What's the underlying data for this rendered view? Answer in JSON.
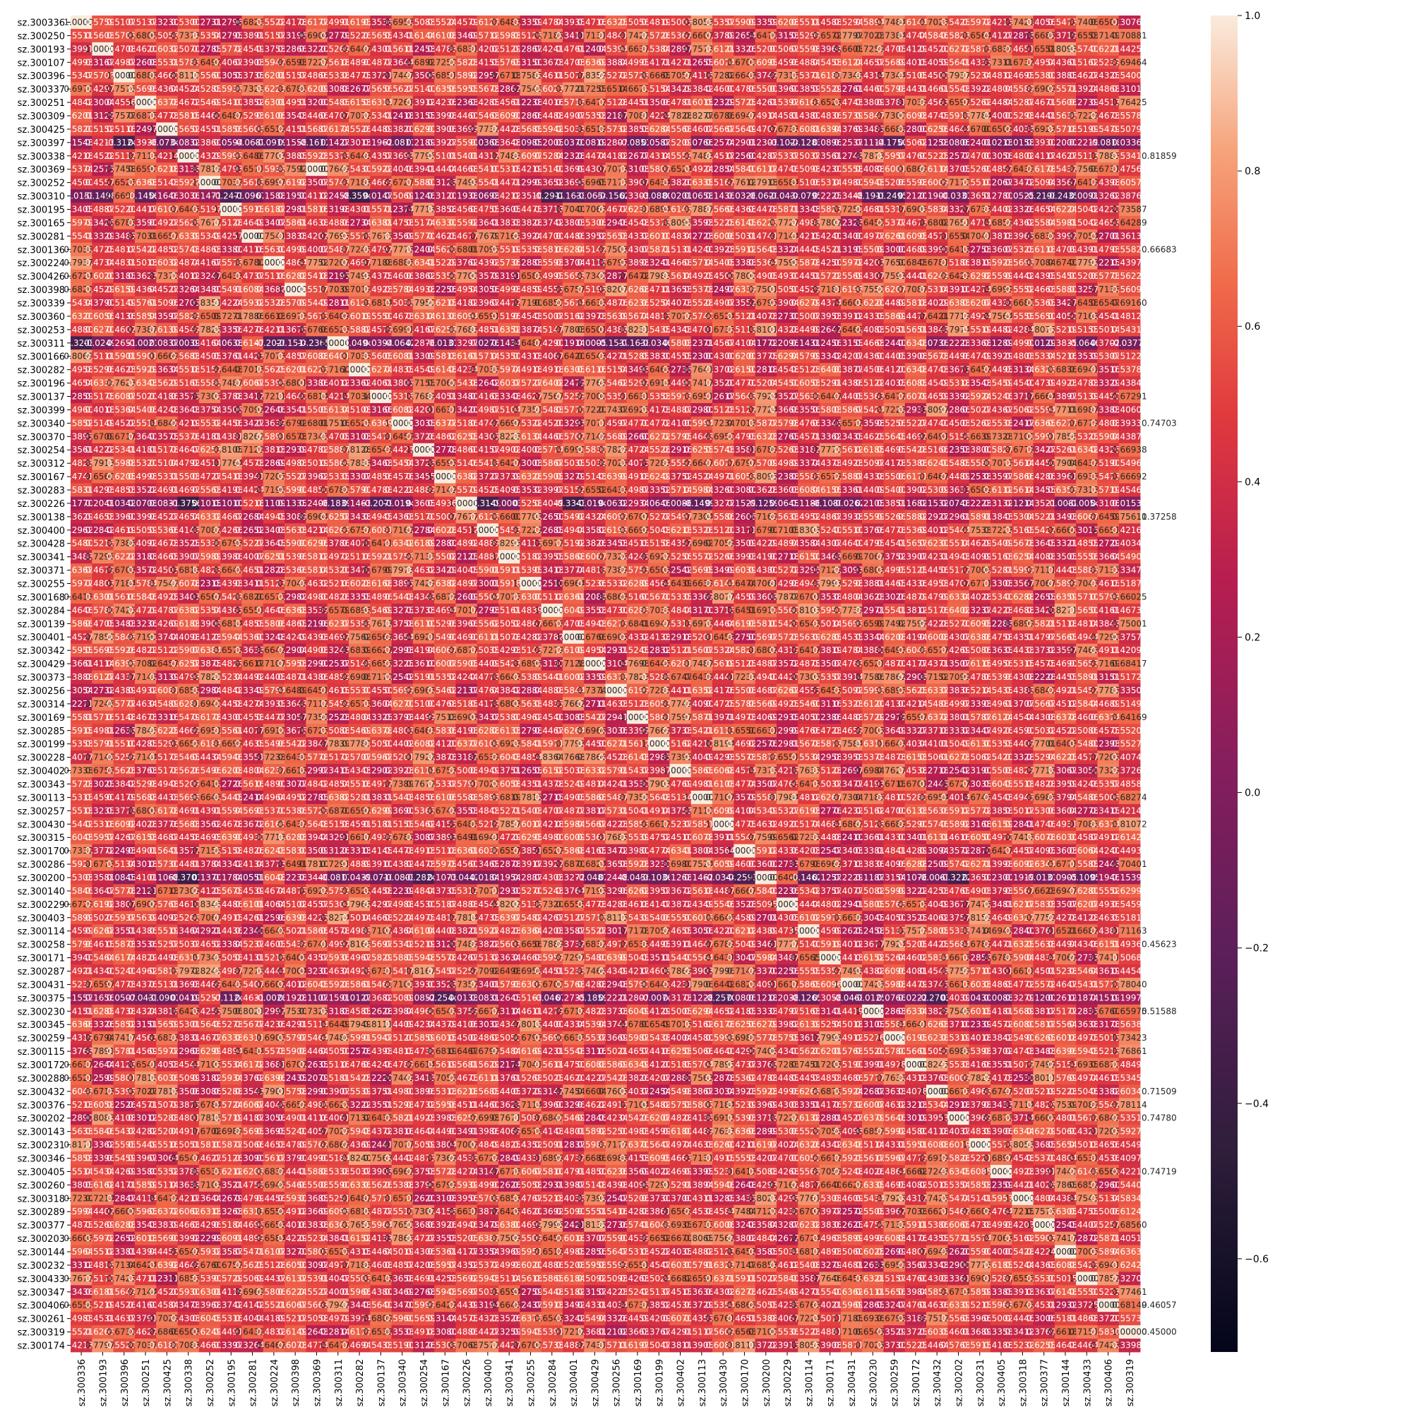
{
  "chart_data": {
    "type": "heatmap",
    "title": "",
    "xlabel": "",
    "ylabel": "",
    "row_labels": [
      "sz.300336",
      "sz.300250",
      "sz.300193",
      "sz.300107",
      "sz.300396",
      "sz.300337",
      "sz.300251",
      "sz.300309",
      "sz.300425",
      "sz.300397",
      "sz.300338",
      "sz.300369",
      "sz.300252",
      "sz.300310",
      "sz.300195",
      "sz.300165",
      "sz.300281",
      "sz.300136",
      "sz.300224",
      "sz.300426",
      "sz.300398",
      "sz.300339",
      "sz.300360",
      "sz.300253",
      "sz.300311",
      "sz.300166",
      "sz.300282",
      "sz.300196",
      "sz.300137",
      "sz.300399",
      "sz.300340",
      "sz.300370",
      "sz.300254",
      "sz.300312",
      "sz.300167",
      "sz.300283",
      "sz.300226",
      "sz.300138",
      "sz.300400",
      "sz.300428",
      "sz.300341",
      "sz.300371",
      "sz.300255",
      "sz.300168",
      "sz.300284",
      "sz.300139",
      "sz.300401",
      "sz.300342",
      "sz.300429",
      "sz.300373",
      "sz.300256",
      "sz.300314",
      "sz.300169",
      "sz.300285",
      "sz.300199",
      "sz.300228",
      "sz.300402",
      "sz.300343",
      "sz.300113",
      "sz.300257",
      "sz.300430",
      "sz.300315",
      "sz.300170",
      "sz.300286",
      "sz.300200",
      "sz.300140",
      "sz.300229",
      "sz.300403",
      "sz.300114",
      "sz.300258",
      "sz.300171",
      "sz.300287",
      "sz.300431",
      "sz.300375",
      "sz.300230",
      "sz.300345",
      "sz.300259",
      "sz.300115",
      "sz.300172",
      "sz.300288",
      "sz.300432",
      "sz.300376",
      "sz.300202",
      "sz.300143",
      "sz.300231",
      "sz.300346",
      "sz.300405",
      "sz.300260",
      "sz.300318",
      "sz.300289",
      "sz.300377",
      "sz.300203",
      "sz.300144",
      "sz.300232",
      "sz.300433",
      "sz.300347",
      "sz.300406",
      "sz.300261",
      "sz.300319",
      "sz.300174"
    ],
    "col_labels": [
      "sz.300336",
      "sz.300193",
      "sz.300396",
      "sz.300251",
      "sz.300425",
      "sz.300338",
      "sz.300252",
      "sz.300195",
      "sz.300281",
      "sz.300224",
      "sz.300398",
      "sz.300369",
      "sz.300311",
      "sz.300282",
      "sz.300137",
      "sz.300340",
      "sz.300254",
      "sz.300167",
      "sz.300226",
      "sz.300400",
      "sz.300341",
      "sz.300255",
      "sz.300284",
      "sz.300401",
      "sz.300429",
      "sz.300256",
      "sz.300169",
      "sz.300199",
      "sz.300402",
      "sz.300113",
      "sz.300430",
      "sz.300170",
      "sz.300200",
      "sz.300229",
      "sz.300114",
      "sz.300171",
      "sz.300431",
      "sz.300230",
      "sz.300259",
      "sz.300172",
      "sz.300432",
      "sz.300202",
      "sz.300231",
      "sz.300405",
      "sz.300318",
      "sz.300377",
      "sz.300144",
      "sz.300433",
      "sz.300406",
      "sz.300319"
    ],
    "values_note": "",
    "visible_right_edge_values": [
      "0.81859",
      "0.66683",
      "0.74703",
      "0.37258",
      "0.45623",
      "0.51588",
      "0.71509",
      "0.74780",
      "0.74719",
      "0.46057",
      "0.45000"
    ],
    "colorbar": {
      "min": -0.72,
      "max": 1.0,
      "ticks": [
        "1.0",
        "0.8",
        "0.6",
        "0.4",
        "0.2",
        "0.0",
        "−0.2",
        "−0.4",
        "−0.6"
      ],
      "colormap": "rocket"
    },
    "grid": false,
    "legend": "colorbar-right",
    "diagonal": 1.0
  }
}
